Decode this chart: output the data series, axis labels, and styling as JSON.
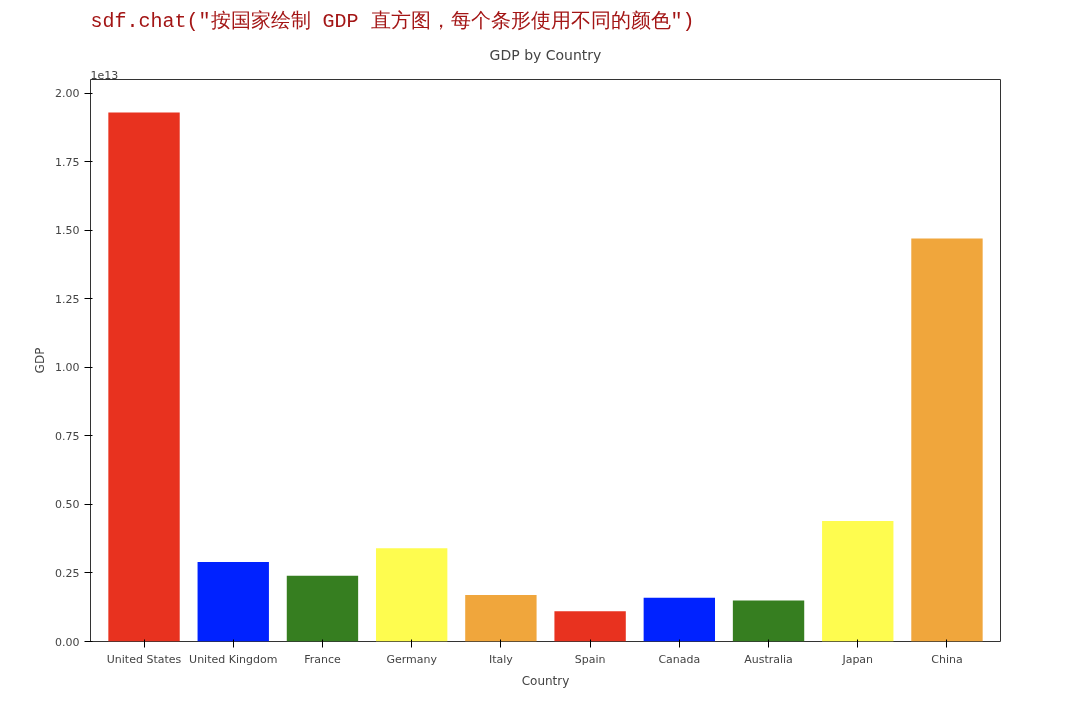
{
  "chart_data": {
    "type": "bar",
    "title": "GDP by Country",
    "xlabel": "Country",
    "ylabel": "GDP",
    "annotations": [
      "sdf.chat(\"按国家绘制 GDP 直方图，每个条形使用不同的颜色\")",
      "1e13"
    ],
    "categories": [
      "United States",
      "United Kingdom",
      "France",
      "Germany",
      "Italy",
      "Spain",
      "Canada",
      "Australia",
      "Japan",
      "China"
    ],
    "values": [
      1.93,
      0.29,
      0.24,
      0.34,
      0.17,
      0.11,
      0.16,
      0.15,
      0.44,
      1.47
    ],
    "colors": [
      "#e8321f",
      "#0022ff",
      "#367e20",
      "#fefc4f",
      "#f0a63c",
      "#e8321f",
      "#0022ff",
      "#367e20",
      "#fefc4f",
      "#f0a63c"
    ],
    "ylim": [
      0,
      2.05
    ],
    "yticks": [
      {
        "value": 0,
        "label": "0.00"
      },
      {
        "value": 0.25,
        "label": "0.25"
      },
      {
        "value": 0.5,
        "label": "0.50"
      },
      {
        "value": 0.75,
        "label": "0.75"
      },
      {
        "value": 1,
        "label": "1.00"
      },
      {
        "value": 1.25,
        "label": "1.25"
      },
      {
        "value": 1.5,
        "label": "1.50"
      },
      {
        "value": 1.75,
        "label": "1.75"
      },
      {
        "value": 2,
        "label": "2.00"
      }
    ],
    "grid": false
  }
}
